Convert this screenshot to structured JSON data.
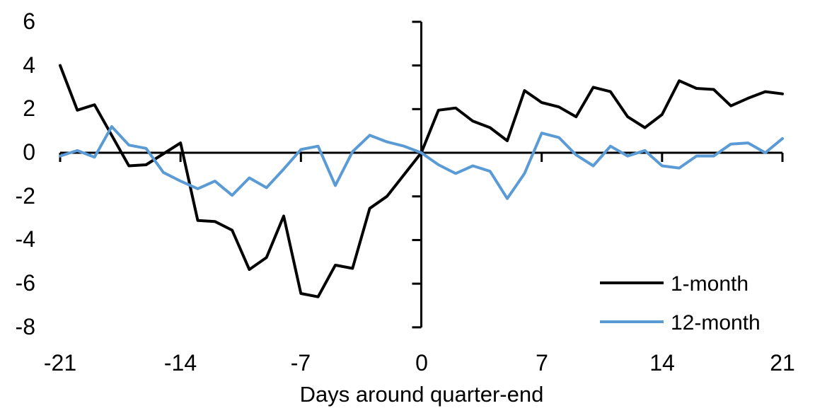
{
  "figure": {
    "background": "#ffffff",
    "axis_color": "#000000"
  },
  "chart_data": {
    "type": "line",
    "xlabel": "Days around quarter-end",
    "x": [
      -21,
      -20,
      -19,
      -18,
      -17,
      -16,
      -15,
      -14,
      -13,
      -12,
      -11,
      -10,
      -9,
      -8,
      -7,
      -6,
      -5,
      -4,
      -3,
      -2,
      -1,
      0,
      1,
      2,
      3,
      4,
      5,
      6,
      7,
      8,
      9,
      10,
      11,
      12,
      13,
      14,
      15,
      16,
      17,
      18,
      19,
      20,
      21
    ],
    "series": [
      {
        "name": "1-month",
        "color": "#000000",
        "values": [
          4.0,
          1.95,
          2.2,
          0.8,
          -0.6,
          -0.55,
          -0.05,
          0.45,
          -3.1,
          -3.15,
          -3.55,
          -5.35,
          -4.8,
          -2.9,
          -6.45,
          -6.6,
          -5.15,
          -5.3,
          -2.55,
          -2.0,
          -1.0,
          0.0,
          1.95,
          2.05,
          1.45,
          1.15,
          0.55,
          2.85,
          2.3,
          2.1,
          1.65,
          3.0,
          2.8,
          1.65,
          1.15,
          1.75,
          3.3,
          2.95,
          2.9,
          2.15,
          2.5,
          2.8,
          2.7
        ]
      },
      {
        "name": "12-month",
        "color": "#5B9BD5",
        "values": [
          -0.15,
          0.1,
          -0.2,
          1.2,
          0.35,
          0.2,
          -0.9,
          -1.3,
          -1.65,
          -1.3,
          -1.95,
          -1.15,
          -1.6,
          -0.75,
          0.15,
          0.3,
          -1.5,
          0.05,
          0.8,
          0.5,
          0.3,
          0.0,
          -0.55,
          -0.95,
          -0.6,
          -0.85,
          -2.1,
          -0.95,
          0.9,
          0.7,
          -0.1,
          -0.6,
          0.3,
          -0.15,
          0.1,
          -0.6,
          -0.7,
          -0.15,
          -0.15,
          0.4,
          0.45,
          0.0,
          0.65
        ]
      }
    ],
    "x_ticks": [
      -21,
      -14,
      -7,
      0,
      7,
      14,
      21
    ],
    "y_ticks": [
      6,
      4,
      2,
      0,
      -2,
      -4,
      -6,
      -8
    ],
    "xlim": [
      -21,
      21
    ],
    "ylim": [
      -8,
      6
    ],
    "grid": false,
    "legend_position": "lower-right"
  }
}
